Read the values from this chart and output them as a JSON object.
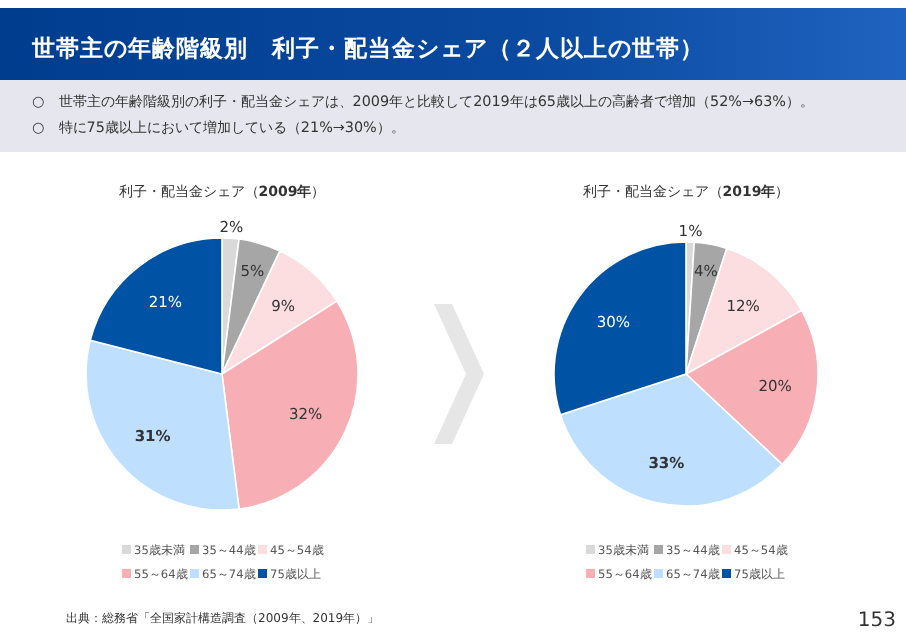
{
  "chart_data": [
    {
      "type": "other",
      "title": "世帯主の年齢階級別　利子・配当金シェア（２人以上の世帯）",
      "annotations": [
        "○　世帯主の年齢階級別の利子・配当金シェアは、2009年と比較して2019年は65歳以上の高齢者で増加（52%→63%）。",
        "○　特に75歳以上において増加している（21%→30%）。",
        "出典：総務省「全国家計構造調査（2009年、2019年）」",
        "153"
      ]
    },
    {
      "type": "pie",
      "title": "利子・配当金シェア（**2009年**）",
      "categories": [
        "35歳未満",
        "35～44歳",
        "45～54歳",
        "55～64歳",
        "65～74歳",
        "75歳以上"
      ],
      "values": [
        2,
        5,
        9,
        32,
        31,
        21
      ],
      "value_labels": [
        "2%",
        "5%",
        "9%",
        "32%",
        "31%",
        "21%"
      ],
      "colors": [
        "#d9d9d9",
        "#a6a6a6",
        "#fcdde0",
        "#f8aeb5",
        "#bfdfff",
        "#0052a5"
      ],
      "legend": "bottom"
    },
    {
      "type": "pie",
      "title": "利子・配当金シェア（**2019年**）",
      "categories": [
        "35歳未満",
        "35～44歳",
        "45～54歳",
        "55～64歳",
        "65～74歳",
        "75歳以上"
      ],
      "values": [
        1,
        4,
        12,
        20,
        33,
        30
      ],
      "value_labels": [
        "1%",
        "4%",
        "12%",
        "20%",
        "33%",
        "30%"
      ],
      "colors": [
        "#d9d9d9",
        "#a6a6a6",
        "#fcdde0",
        "#f8aeb5",
        "#bfdfff",
        "#0052a5"
      ],
      "legend": "bottom"
    }
  ]
}
